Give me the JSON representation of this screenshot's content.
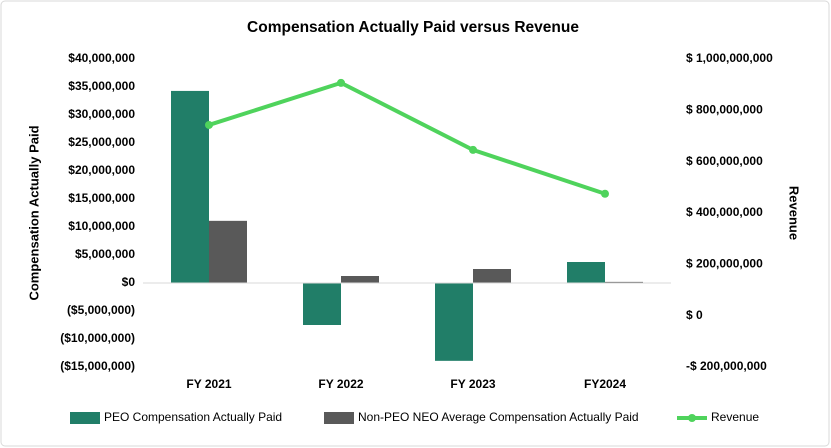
{
  "chart_data": {
    "type": "bar_line_combo",
    "title": "Compensation Actually Paid versus Revenue",
    "y_axis_label": "Compensation Actually Paid",
    "y2_axis_label": "Revenue",
    "categories": [
      "FY 2021",
      "FY 2022",
      "FY 2023",
      "FY2024"
    ],
    "series": [
      {
        "name": "PEO Compensation Actually Paid",
        "type": "bar",
        "color": "#217e68",
        "values": [
          34300000,
          -7500000,
          -13900000,
          3750000
        ]
      },
      {
        "name": "Non-PEO NEO Average Compensation Actually Paid",
        "type": "bar",
        "color": "#595959",
        "values": [
          11100000,
          1250000,
          2500000,
          200000
        ]
      },
      {
        "name": "Revenue",
        "type": "line",
        "axis": "y2",
        "color": "#4fd35c",
        "values": [
          743000000,
          907000000,
          646000000,
          475000000
        ]
      }
    ],
    "ylim": [
      -15000000,
      40000000
    ],
    "yticks": [
      {
        "value": -15000000,
        "label": "($15,000,000)"
      },
      {
        "value": -10000000,
        "label": "($10,000,000)"
      },
      {
        "value": -5000000,
        "label": "($5,000,000)"
      },
      {
        "value": 0,
        "label": "$0"
      },
      {
        "value": 5000000,
        "label": "$5,000,000"
      },
      {
        "value": 10000000,
        "label": "$10,000,000"
      },
      {
        "value": 15000000,
        "label": "$15,000,000"
      },
      {
        "value": 20000000,
        "label": "$20,000,000"
      },
      {
        "value": 25000000,
        "label": "$25,000,000"
      },
      {
        "value": 30000000,
        "label": "$30,000,000"
      },
      {
        "value": 35000000,
        "label": "$35,000,000"
      },
      {
        "value": 40000000,
        "label": "$40,000,000"
      }
    ],
    "y2lim": [
      -200000000,
      1000000000
    ],
    "y2ticks": [
      {
        "value": -200000000,
        "label": "-$ 200,000,000"
      },
      {
        "value": 0,
        "label": "$ 0"
      },
      {
        "value": 200000000,
        "label": "$ 200,000,000"
      },
      {
        "value": 400000000,
        "label": "$ 400,000,000"
      },
      {
        "value": 600000000,
        "label": "$ 600,000,000"
      },
      {
        "value": 800000000,
        "label": "$ 800,000,000"
      },
      {
        "value": 1000000000,
        "label": "$ 1,000,000,000"
      }
    ],
    "legend": "bottom"
  }
}
